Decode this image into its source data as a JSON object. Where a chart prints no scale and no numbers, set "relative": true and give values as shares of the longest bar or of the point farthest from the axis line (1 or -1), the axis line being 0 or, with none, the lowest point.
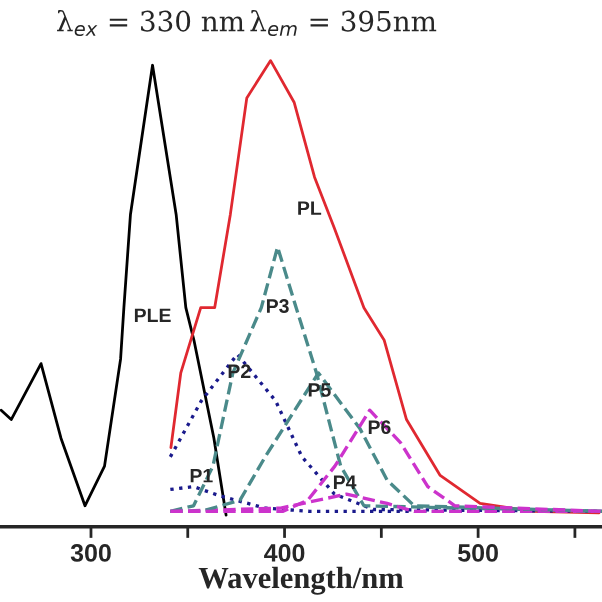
{
  "chart_data": {
    "type": "line",
    "relative": true,
    "xlabel": "Wavelength/nm",
    "xlim": [
      253,
      564
    ],
    "xticks": [
      300,
      {
        "value": 350,
        "label": null
      },
      400,
      {
        "value": 450,
        "label": null
      },
      500,
      {
        "value": 550,
        "label": null
      }
    ],
    "tick_labels": "x",
    "grid": false,
    "legend": false,
    "marker": "none",
    "series": [
      {
        "name": "PLE",
        "color": "#000000",
        "line_style": "solid",
        "x": [
          253.6,
          258.8,
          274.2,
          284.5,
          296.9,
          307,
          315.3,
          317,
          320.4,
          331.8,
          344,
          349,
          353.2,
          363.5,
          369.8
        ],
        "values": [
          0.25,
          0.23,
          0.35,
          0.19,
          0.045,
          0.13,
          0.36,
          0.47,
          0.67,
          0.99,
          0.67,
          0.47,
          0.4,
          0.19,
          0.025
        ]
      },
      {
        "name": "PL",
        "color": "#e02830",
        "line_style": "solid",
        "x": [
          341.3,
          346.4,
          356.7,
          363.9,
          372,
          380.5,
          392.8,
          405,
          415.5,
          425.8,
          441,
          451.5,
          463,
          480.4,
          501,
          528.5,
          562.5
        ],
        "values": [
          0.17,
          0.33,
          0.47,
          0.47,
          0.67,
          0.92,
          1.0,
          0.91,
          0.75,
          0.64,
          0.47,
          0.4,
          0.23,
          0.11,
          0.05,
          0.033,
          0.03
        ]
      },
      {
        "name": "P1",
        "color": "#1a1a8c",
        "line_style": "dotted",
        "x": [
          341,
          353,
          366.8,
          390,
          413,
          564
        ],
        "values": [
          0.08,
          0.086,
          0.066,
          0.04,
          0.033,
          0.033
        ]
      },
      {
        "name": "P2",
        "color": "#1a1a8c",
        "line_style": "dotted",
        "x": [
          341,
          357,
          375.6,
          395.4,
          409,
          425.8,
          446,
          564
        ],
        "values": [
          0.15,
          0.27,
          0.37,
          0.27,
          0.15,
          0.07,
          0.037,
          0.033
        ]
      },
      {
        "name": "P3",
        "color": "#4a8a8a",
        "line_style": "dashed",
        "x": [
          341,
          353,
          363,
          373.3,
          388,
          396.4,
          406,
          416.5,
          429,
          441,
          564
        ],
        "values": [
          0.033,
          0.045,
          0.13,
          0.33,
          0.47,
          0.6,
          0.47,
          0.33,
          0.13,
          0.045,
          0.033
        ]
      },
      {
        "name": "P4",
        "color": "#cc33cc",
        "line_style": "dashed",
        "x": [
          341,
          398,
          432,
          453,
          467,
          564
        ],
        "values": [
          0.033,
          0.04,
          0.07,
          0.05,
          0.033,
          0.033
        ]
      },
      {
        "name": "P5",
        "color": "#4a8a8a",
        "line_style": "dashed",
        "x": [
          341,
          357,
          377,
          390,
          417.5,
          439,
          453,
          467,
          564
        ],
        "values": [
          0.033,
          0.033,
          0.057,
          0.15,
          0.33,
          0.21,
          0.1,
          0.045,
          0.033
        ]
      },
      {
        "name": "P6",
        "color": "#cc33cc",
        "line_style": "dashed",
        "x": [
          341,
          399,
          412,
          426,
          444,
          460,
          474,
          488,
          564
        ],
        "values": [
          0.033,
          0.033,
          0.057,
          0.13,
          0.25,
          0.18,
          0.086,
          0.045,
          0.033
        ]
      }
    ],
    "annotations": [
      "λ$_{ex}$ = 330 nm",
      "λ$_{em}$ = 395nm"
    ]
  }
}
